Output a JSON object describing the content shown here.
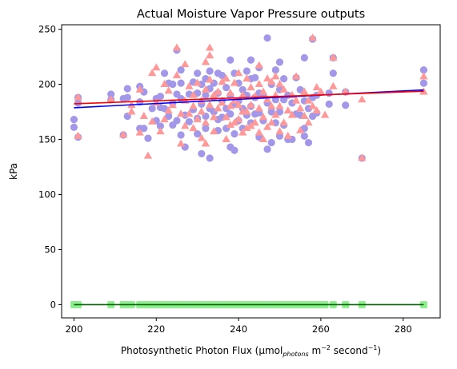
{
  "chart_data": {
    "type": "scatter",
    "title": "Actual Moisture Vapor Pressure outputs",
    "xlabel": "Photosynthetic Photon Flux (μmol",
    "xlabel_sub": "photons",
    "xlabel_mid": " m",
    "xlabel_sup1": "−2",
    "xlabel_end": " second",
    "xlabel_sup2": "−1",
    "xlabel_close": ")",
    "ylabel": "kPa",
    "xlim": [
      197,
      289
    ],
    "ylim": [
      -12,
      254
    ],
    "xticks": [
      200,
      220,
      240,
      260,
      280
    ],
    "yticks": [
      0,
      50,
      100,
      150,
      200,
      250
    ],
    "grid": false,
    "series": [
      {
        "marker": "circle",
        "color": "#a297e8",
        "points": [
          [
            200,
            168
          ],
          [
            200,
            161
          ],
          [
            201,
            188
          ],
          [
            201,
            183
          ],
          [
            201,
            152
          ],
          [
            209,
            191
          ],
          [
            209,
            186
          ],
          [
            212,
            187
          ],
          [
            212,
            154
          ],
          [
            213,
            196
          ],
          [
            213,
            188
          ],
          [
            213,
            171
          ],
          [
            216,
            198
          ],
          [
            216,
            184
          ],
          [
            216,
            160
          ],
          [
            217,
            193
          ],
          [
            217,
            160
          ],
          [
            218,
            151
          ],
          [
            219,
            178
          ],
          [
            220,
            187
          ],
          [
            220,
            167
          ],
          [
            221,
            189
          ],
          [
            221,
            179
          ],
          [
            221,
            162
          ],
          [
            222,
            210
          ],
          [
            222,
            178
          ],
          [
            223,
            201
          ],
          [
            223,
            171
          ],
          [
            224,
            200
          ],
          [
            224,
            183
          ],
          [
            224,
            163
          ],
          [
            225,
            231
          ],
          [
            225,
            191
          ],
          [
            225,
            167
          ],
          [
            226,
            213
          ],
          [
            226,
            201
          ],
          [
            226,
            187
          ],
          [
            226,
            154
          ],
          [
            227,
            172
          ],
          [
            227,
            143
          ],
          [
            228,
            191
          ],
          [
            228,
            166
          ],
          [
            229,
            202
          ],
          [
            229,
            177
          ],
          [
            230,
            210
          ],
          [
            230,
            192
          ],
          [
            230,
            169
          ],
          [
            230,
            155
          ],
          [
            231,
            200
          ],
          [
            231,
            182
          ],
          [
            231,
            137
          ],
          [
            232,
            205
          ],
          [
            232,
            190
          ],
          [
            232,
            171
          ],
          [
            232,
            160
          ],
          [
            233,
            212
          ],
          [
            233,
            196
          ],
          [
            233,
            178
          ],
          [
            233,
            133
          ],
          [
            234,
            201
          ],
          [
            234,
            188
          ],
          [
            234,
            175
          ],
          [
            235,
            210
          ],
          [
            235,
            192
          ],
          [
            235,
            168
          ],
          [
            235,
            158
          ],
          [
            236,
            208
          ],
          [
            236,
            185
          ],
          [
            236,
            170
          ],
          [
            237,
            197
          ],
          [
            237,
            178
          ],
          [
            237,
            160
          ],
          [
            238,
            222
          ],
          [
            238,
            190
          ],
          [
            238,
            173
          ],
          [
            238,
            143
          ],
          [
            239,
            210
          ],
          [
            239,
            182
          ],
          [
            239,
            155
          ],
          [
            239,
            140
          ],
          [
            240,
            201
          ],
          [
            240,
            185
          ],
          [
            240,
            167
          ],
          [
            241,
            195
          ],
          [
            241,
            178
          ],
          [
            241,
            160
          ],
          [
            242,
            212
          ],
          [
            242,
            190
          ],
          [
            242,
            172
          ],
          [
            243,
            222
          ],
          [
            243,
            205
          ],
          [
            243,
            180
          ],
          [
            243,
            165
          ],
          [
            244,
            206
          ],
          [
            244,
            188
          ],
          [
            244,
            173
          ],
          [
            245,
            215
          ],
          [
            245,
            192
          ],
          [
            245,
            174
          ],
          [
            245,
            152
          ],
          [
            246,
            190
          ],
          [
            246,
            167
          ],
          [
            247,
            242
          ],
          [
            247,
            183
          ],
          [
            247,
            141
          ],
          [
            248,
            200
          ],
          [
            248,
            175
          ],
          [
            248,
            147
          ],
          [
            249,
            213
          ],
          [
            249,
            186
          ],
          [
            249,
            165
          ],
          [
            250,
            220
          ],
          [
            250,
            195
          ],
          [
            250,
            175
          ],
          [
            250,
            153
          ],
          [
            251,
            205
          ],
          [
            251,
            186
          ],
          [
            251,
            163
          ],
          [
            252,
            190
          ],
          [
            252,
            150
          ],
          [
            253,
            183
          ],
          [
            253,
            150
          ],
          [
            254,
            206
          ],
          [
            254,
            173
          ],
          [
            255,
            195
          ],
          [
            255,
            172
          ],
          [
            256,
            224
          ],
          [
            256,
            185
          ],
          [
            256,
            160
          ],
          [
            256,
            153
          ],
          [
            257,
            178
          ],
          [
            257,
            147
          ],
          [
            258,
            241
          ],
          [
            258,
            188
          ],
          [
            258,
            171
          ],
          [
            259,
            190
          ],
          [
            259,
            174
          ],
          [
            262,
            192
          ],
          [
            262,
            182
          ],
          [
            263,
            224
          ],
          [
            263,
            210
          ],
          [
            266,
            193
          ],
          [
            266,
            181
          ],
          [
            270,
            133
          ],
          [
            285,
            213
          ],
          [
            285,
            201
          ]
        ]
      },
      {
        "marker": "triangle",
        "color": "#ff9999",
        "points": [
          [
            201,
            188
          ],
          [
            201,
            153
          ],
          [
            209,
            186
          ],
          [
            212,
            154
          ],
          [
            214,
            181
          ],
          [
            214,
            175
          ],
          [
            216,
            195
          ],
          [
            216,
            156
          ],
          [
            217,
            171
          ],
          [
            218,
            135
          ],
          [
            219,
            210
          ],
          [
            219,
            166
          ],
          [
            220,
            215
          ],
          [
            220,
            183
          ],
          [
            221,
            157
          ],
          [
            222,
            200
          ],
          [
            222,
            168
          ],
          [
            223,
            194
          ],
          [
            223,
            176
          ],
          [
            224,
            181
          ],
          [
            225,
            233
          ],
          [
            225,
            208
          ],
          [
            226,
            173
          ],
          [
            226,
            146
          ],
          [
            227,
            218
          ],
          [
            227,
            185
          ],
          [
            227,
            162
          ],
          [
            228,
            198
          ],
          [
            228,
            173
          ],
          [
            229,
            190
          ],
          [
            229,
            180
          ],
          [
            229,
            160
          ],
          [
            230,
            201
          ],
          [
            230,
            168
          ],
          [
            231,
            185
          ],
          [
            231,
            175
          ],
          [
            231,
            151
          ],
          [
            232,
            220
          ],
          [
            232,
            195
          ],
          [
            232,
            165
          ],
          [
            232,
            146
          ],
          [
            233,
            233
          ],
          [
            233,
            226
          ],
          [
            233,
            204
          ],
          [
            233,
            181
          ],
          [
            234,
            190
          ],
          [
            234,
            170
          ],
          [
            234,
            157
          ],
          [
            235,
            193
          ],
          [
            235,
            178
          ],
          [
            236,
            202
          ],
          [
            236,
            183
          ],
          [
            237,
            205
          ],
          [
            237,
            170
          ],
          [
            237,
            150
          ],
          [
            238,
            192
          ],
          [
            238,
            180
          ],
          [
            238,
            163
          ],
          [
            239,
            201
          ],
          [
            239,
            185
          ],
          [
            239,
            165
          ],
          [
            240,
            210
          ],
          [
            240,
            181
          ],
          [
            240,
            168
          ],
          [
            241,
            190
          ],
          [
            241,
            175
          ],
          [
            241,
            156
          ],
          [
            242,
            205
          ],
          [
            242,
            175
          ],
          [
            242,
            160
          ],
          [
            243,
            197
          ],
          [
            243,
            181
          ],
          [
            243,
            162
          ],
          [
            244,
            189
          ],
          [
            244,
            165
          ],
          [
            245,
            217
          ],
          [
            245,
            200
          ],
          [
            245,
            178
          ],
          [
            245,
            156
          ],
          [
            246,
            193
          ],
          [
            246,
            170
          ],
          [
            246,
            150
          ],
          [
            247,
            205
          ],
          [
            247,
            186
          ],
          [
            247,
            161
          ],
          [
            248,
            202
          ],
          [
            248,
            180
          ],
          [
            248,
            165
          ],
          [
            249,
            207
          ],
          [
            249,
            190
          ],
          [
            249,
            172
          ],
          [
            250,
            200
          ],
          [
            250,
            180
          ],
          [
            250,
            157
          ],
          [
            251,
            195
          ],
          [
            251,
            165
          ],
          [
            252,
            176
          ],
          [
            252,
            153
          ],
          [
            253,
            190
          ],
          [
            253,
            172
          ],
          [
            254,
            207
          ],
          [
            254,
            185
          ],
          [
            255,
            178
          ],
          [
            255,
            158
          ],
          [
            256,
            193
          ],
          [
            256,
            171
          ],
          [
            257,
            185
          ],
          [
            257,
            165
          ],
          [
            258,
            242
          ],
          [
            258,
            180
          ],
          [
            259,
            197
          ],
          [
            259,
            176
          ],
          [
            260,
            193
          ],
          [
            261,
            172
          ],
          [
            263,
            224
          ],
          [
            263,
            198
          ],
          [
            266,
            193
          ],
          [
            270,
            186
          ],
          [
            270,
            133
          ],
          [
            285,
            207
          ],
          [
            285,
            193
          ]
        ]
      },
      {
        "marker": "square",
        "color": "#90ee90",
        "y": 0,
        "x": [
          200,
          201,
          209,
          212,
          213,
          214,
          216,
          217,
          218,
          219,
          220,
          221,
          222,
          223,
          224,
          225,
          226,
          227,
          228,
          229,
          230,
          231,
          232,
          233,
          234,
          235,
          236,
          237,
          238,
          239,
          240,
          241,
          242,
          243,
          244,
          245,
          246,
          247,
          248,
          249,
          250,
          251,
          252,
          253,
          254,
          255,
          256,
          257,
          258,
          259,
          260,
          261,
          263,
          266,
          270,
          285
        ]
      }
    ],
    "trendlines": [
      {
        "color": "#0000ff",
        "x": [
          200,
          285
        ],
        "y": [
          178.7,
          194.9
        ]
      },
      {
        "color": "#ff0000",
        "x": [
          200,
          285
        ],
        "y": [
          182.3,
          193.7
        ]
      },
      {
        "color": "#006400",
        "x": [
          200,
          285
        ],
        "y": [
          0,
          0
        ]
      }
    ]
  }
}
